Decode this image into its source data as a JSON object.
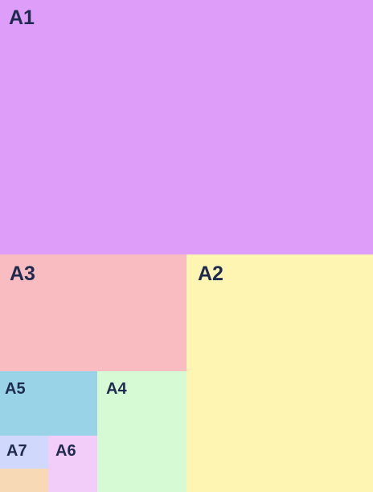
{
  "nodes": [
    {
      "label": "A1"
    },
    {
      "label": "A2"
    },
    {
      "label": "A3"
    },
    {
      "label": "A4"
    },
    {
      "label": "A5"
    },
    {
      "label": "A6"
    },
    {
      "label": "A7"
    }
  ]
}
